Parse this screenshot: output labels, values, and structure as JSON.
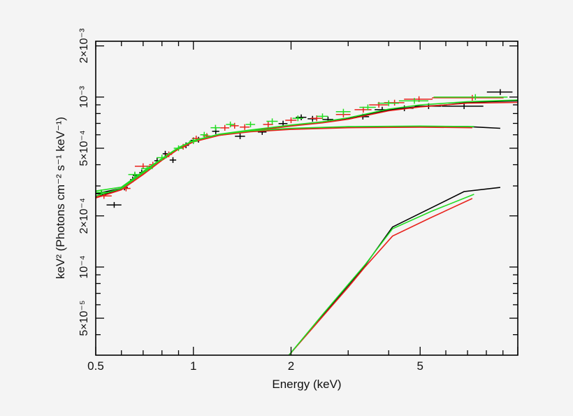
{
  "chart_data": {
    "type": "scatter",
    "title": "",
    "xlabel": "Energy (keV)",
    "ylabel": "keV² (Photons cm⁻² s⁻¹ keV⁻¹)",
    "xscale": "log",
    "yscale": "log",
    "xlim": [
      0.5,
      10
    ],
    "ylim": [
      3.03e-05,
      0.00213
    ],
    "grid": false,
    "legend": "none",
    "x_ticks": [
      {
        "value": 0.5,
        "label": "0.5"
      },
      {
        "value": 1,
        "label": "1"
      },
      {
        "value": 2,
        "label": "2"
      },
      {
        "value": 5,
        "label": "5"
      }
    ],
    "y_ticks": [
      {
        "value": 0.002,
        "label": "2×10⁻³"
      },
      {
        "value": 0.001,
        "label": "10⁻³"
      },
      {
        "value": 0.0005,
        "label": "5×10⁻⁴"
      },
      {
        "value": 0.0002,
        "label": "2×10⁻⁴"
      },
      {
        "value": 0.0001,
        "label": "10⁻⁴"
      },
      {
        "value": 5e-05,
        "label": "5×10⁻⁵"
      }
    ],
    "series": [
      {
        "color": "#000000",
        "points": [
          [
            0.521,
            0.00027,
            0.02
          ],
          [
            0.57,
            0.000232,
            0.03
          ],
          [
            0.613,
            0.000294,
            0.015
          ],
          [
            0.65,
            0.000327,
            0.012
          ],
          [
            0.66,
            0.000346,
            0.01
          ],
          [
            0.693,
            0.00036,
            0.012
          ],
          [
            0.773,
            0.000422,
            0.015
          ],
          [
            0.819,
            0.000464,
            0.015
          ],
          [
            0.865,
            0.000426,
            0.02
          ],
          [
            0.949,
            0.00052,
            0.02
          ],
          [
            1.0,
            0.000556,
            0.02
          ],
          [
            1.037,
            0.000561,
            0.02
          ],
          [
            1.172,
            0.000629,
            0.03
          ],
          [
            1.393,
            0.000588,
            0.05
          ],
          [
            1.63,
            0.000623,
            0.05
          ],
          [
            1.89,
            0.000698,
            0.06
          ],
          [
            2.15,
            0.00076,
            0.08
          ],
          [
            2.33,
            0.000745,
            0.08
          ],
          [
            2.6,
            0.000738,
            0.1
          ],
          [
            3.33,
            0.000767,
            0.15
          ],
          [
            3.82,
            0.000843,
            0.2
          ],
          [
            4.47,
            0.000859,
            0.3
          ],
          [
            5.31,
            0.000884,
            0.5
          ],
          [
            6.83,
            0.000884,
            1.0
          ],
          [
            8.83,
            0.00107,
            0.8
          ]
        ],
        "model_total": [
          [
            0.5,
            0.00027
          ],
          [
            0.6,
            0.00029
          ],
          [
            0.7,
            0.00036
          ],
          [
            0.8,
            0.00043
          ],
          [
            0.9,
            0.0005
          ],
          [
            1.0,
            0.00055
          ],
          [
            1.2,
            0.0006
          ],
          [
            1.5,
            0.000635
          ],
          [
            2,
            0.00068
          ],
          [
            2.5,
            0.00071
          ],
          [
            3,
            0.000745
          ],
          [
            4,
            0.00084
          ],
          [
            5,
            0.00088
          ],
          [
            6,
            0.0009
          ],
          [
            7,
            0.00093
          ],
          [
            10,
            0.00095
          ]
        ],
        "component_1": [
          [
            0.5,
            0.00026
          ],
          [
            0.6,
            0.000287
          ],
          [
            0.7,
            0.000355
          ],
          [
            0.8,
            0.00043
          ],
          [
            0.9,
            0.0005
          ],
          [
            1.0,
            0.00055
          ],
          [
            1.2,
            0.0006
          ],
          [
            1.5,
            0.00063
          ],
          [
            2,
            0.00065
          ],
          [
            2.5,
            0.00066
          ],
          [
            3,
            0.000665
          ],
          [
            4,
            0.00067
          ],
          [
            5,
            0.00067
          ],
          [
            7,
            0.00067
          ],
          [
            8.83,
            0.000655
          ]
        ],
        "component_2": [
          [
            1.97,
            3.03e-05
          ],
          [
            2.5,
            5.19e-05
          ],
          [
            3,
            7.8e-05
          ],
          [
            3.38,
            0.000102
          ],
          [
            4.11,
            0.000172
          ],
          [
            5.39,
            0.000222
          ],
          [
            6.83,
            0.000278
          ],
          [
            8.83,
            0.000294
          ]
        ]
      },
      {
        "color": "#e8231d",
        "points": [
          [
            0.53,
            0.000262,
            0.03
          ],
          [
            0.62,
            0.00029,
            0.02
          ],
          [
            0.7,
            0.000392,
            0.04
          ],
          [
            0.75,
            0.0004,
            0.02
          ],
          [
            0.84,
            0.00046,
            0.02
          ],
          [
            0.93,
            0.00051,
            0.02
          ],
          [
            1.02,
            0.00057,
            0.03
          ],
          [
            1.1,
            0.00059,
            0.03
          ],
          [
            1.25,
            0.000659,
            0.04
          ],
          [
            1.34,
            0.000678,
            0.04
          ],
          [
            1.44,
            0.000666,
            0.05
          ],
          [
            1.7,
            0.00069,
            0.06
          ],
          [
            2.0,
            0.00073,
            0.08
          ],
          [
            2.4,
            0.00075,
            0.1
          ],
          [
            2.9,
            0.00079,
            0.15
          ],
          [
            3.34,
            0.000843,
            0.2
          ],
          [
            3.73,
            0.0009,
            0.25
          ],
          [
            4.17,
            0.000927,
            0.3
          ],
          [
            4.96,
            0.000972,
            0.5
          ],
          [
            7.24,
            0.00099,
            1.8
          ]
        ],
        "model_total": [
          [
            0.5,
            0.000255
          ],
          [
            0.6,
            0.000285
          ],
          [
            0.7,
            0.000355
          ],
          [
            0.8,
            0.000425
          ],
          [
            0.9,
            0.000495
          ],
          [
            1.0,
            0.000545
          ],
          [
            1.2,
            0.000595
          ],
          [
            1.5,
            0.00063
          ],
          [
            2,
            0.000675
          ],
          [
            2.5,
            0.000705
          ],
          [
            3,
            0.00074
          ],
          [
            4,
            0.00083
          ],
          [
            5,
            0.000875
          ],
          [
            6,
            0.0009
          ],
          [
            7,
            0.00092
          ],
          [
            10,
            0.00093
          ]
        ],
        "component_1": [
          [
            0.5,
            0.000255
          ],
          [
            0.6,
            0.000285
          ],
          [
            0.7,
            0.00035
          ],
          [
            0.8,
            0.000425
          ],
          [
            0.9,
            0.000495
          ],
          [
            1.0,
            0.000545
          ],
          [
            1.2,
            0.000595
          ],
          [
            1.5,
            0.000625
          ],
          [
            2,
            0.000645
          ],
          [
            3,
            0.00066
          ],
          [
            5,
            0.000665
          ],
          [
            7.24,
            0.00066
          ]
        ],
        "component_2": [
          [
            1.97,
            3.03e-05
          ],
          [
            2.5,
            5.1e-05
          ],
          [
            3,
            7.6e-05
          ],
          [
            3.38,
            0.0001
          ],
          [
            4.11,
            0.000152
          ],
          [
            5.39,
            0.000195
          ],
          [
            7.24,
            0.000253
          ]
        ]
      },
      {
        "color": "#22dd22",
        "points": [
          [
            0.52,
            0.000275,
            0.03
          ],
          [
            0.66,
            0.00035,
            0.03
          ],
          [
            0.72,
            0.00038,
            0.03
          ],
          [
            0.8,
            0.00044,
            0.03
          ],
          [
            0.9,
            0.0005,
            0.03
          ],
          [
            1.0,
            0.00055,
            0.03
          ],
          [
            1.08,
            0.0006,
            0.03
          ],
          [
            1.17,
            0.00066,
            0.04
          ],
          [
            1.3,
            0.00069,
            0.04
          ],
          [
            1.5,
            0.00069,
            0.05
          ],
          [
            1.75,
            0.00072,
            0.07
          ],
          [
            2.1,
            0.00075,
            0.08
          ],
          [
            2.5,
            0.00077,
            0.1
          ],
          [
            2.9,
            0.00082,
            0.15
          ],
          [
            3.45,
            0.00087,
            0.2
          ],
          [
            4.0,
            0.00092,
            0.3
          ],
          [
            4.8,
            0.00095,
            0.5
          ],
          [
            7.4,
            0.001,
            1.9
          ]
        ],
        "model_total": [
          [
            0.5,
            0.00028
          ],
          [
            0.6,
            0.000295
          ],
          [
            0.7,
            0.000365
          ],
          [
            0.8,
            0.000435
          ],
          [
            0.9,
            0.000505
          ],
          [
            1.0,
            0.000555
          ],
          [
            1.2,
            0.000605
          ],
          [
            1.5,
            0.00064
          ],
          [
            2,
            0.000685
          ],
          [
            2.5,
            0.000715
          ],
          [
            3,
            0.000755
          ],
          [
            4,
            0.00085
          ],
          [
            5,
            0.0009
          ],
          [
            6,
            0.00092
          ],
          [
            7,
            0.00094
          ],
          [
            10,
            0.00096
          ]
        ],
        "component_1": [
          [
            0.5,
            0.000262
          ],
          [
            0.6,
            0.00029
          ],
          [
            0.7,
            0.000358
          ],
          [
            0.8,
            0.000433
          ],
          [
            0.9,
            0.000503
          ],
          [
            1.0,
            0.000553
          ],
          [
            1.2,
            0.000603
          ],
          [
            1.5,
            0.000633
          ],
          [
            2,
            0.000655
          ],
          [
            3,
            0.00067
          ],
          [
            5,
            0.000675
          ],
          [
            7.33,
            0.00067
          ]
        ],
        "component_2": [
          [
            1.97,
            3.03e-05
          ],
          [
            2.5,
            5.25e-05
          ],
          [
            3,
            7.9e-05
          ],
          [
            3.38,
            0.000103
          ],
          [
            4.11,
            0.000168
          ],
          [
            5.39,
            0.000212
          ],
          [
            7.33,
            0.000268
          ]
        ]
      }
    ]
  }
}
